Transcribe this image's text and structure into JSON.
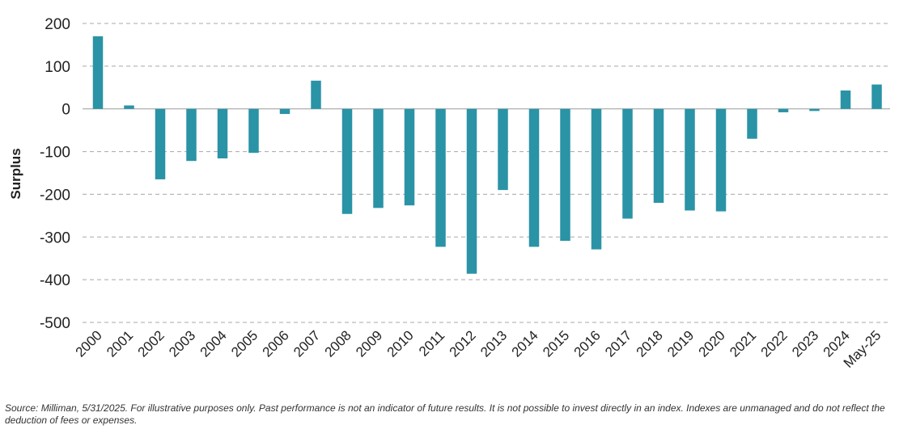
{
  "chart_data": {
    "type": "bar",
    "categories": [
      "2000",
      "2001",
      "2002",
      "2003",
      "2004",
      "2005",
      "2006",
      "2007",
      "2008",
      "2009",
      "2010",
      "2011",
      "2012",
      "2013",
      "2014",
      "2015",
      "2016",
      "2017",
      "2018",
      "2019",
      "2020",
      "2021",
      "2022",
      "2023",
      "2024",
      "May-25"
    ],
    "values": [
      170,
      8,
      -165,
      -122,
      -116,
      -103,
      -12,
      66,
      -246,
      -232,
      -226,
      -323,
      -386,
      -190,
      -323,
      -309,
      -329,
      -257,
      -220,
      -238,
      -240,
      -70,
      -8,
      -5,
      43,
      57
    ],
    "ylabel": "Surplus",
    "xlabel": "",
    "ylim": [
      -500,
      200
    ],
    "yticks": [
      200,
      100,
      0,
      -100,
      -200,
      -300,
      -400,
      -500
    ],
    "grid": true,
    "legend": "none",
    "bar_color": "#2a93a6"
  },
  "footnote": "Source: Milliman, 5/31/2025. For illustrative purposes only. Past performance is not an indicator of future results. It is not possible to invest directly in an index. Indexes are unmanaged and do not reflect the deduction of fees or expenses."
}
